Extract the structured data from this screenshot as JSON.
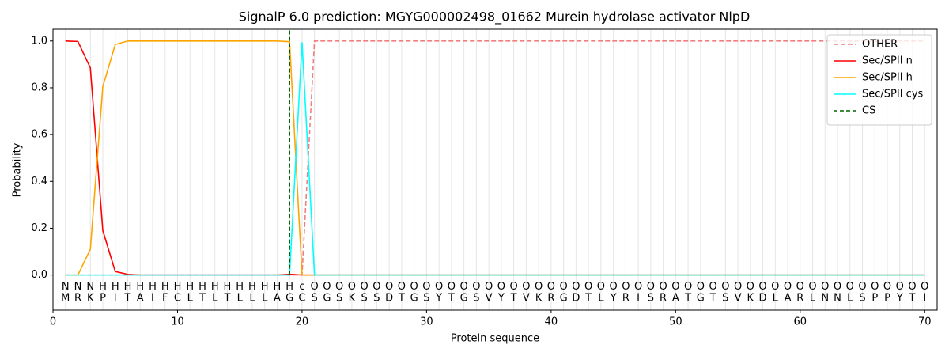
{
  "chart_data": {
    "type": "line",
    "title": "SignalP 6.0 prediction: MGYG000002498_01662 Murein hydrolase activator NlpD",
    "xlabel": "Protein sequence",
    "ylabel": "Probability",
    "xlim": [
      0,
      71
    ],
    "ylim": [
      -0.15,
      1.05
    ],
    "xticks": [
      0,
      10,
      20,
      30,
      40,
      50,
      60,
      70
    ],
    "yticks": [
      {
        "value": 0,
        "label": "0.0"
      },
      {
        "value": 0.2,
        "label": "0.2"
      },
      {
        "value": 0.4,
        "label": "0.4"
      },
      {
        "value": 0.6,
        "label": "0.6"
      },
      {
        "value": 0.8,
        "label": "0.8"
      },
      {
        "value": 1,
        "label": "1.0"
      }
    ],
    "grid": true,
    "legend": "upper right",
    "x": [
      1,
      2,
      3,
      4,
      5,
      6,
      7,
      8,
      9,
      10,
      11,
      12,
      13,
      14,
      15,
      16,
      17,
      18,
      19,
      20,
      21,
      22,
      23,
      24,
      25,
      26,
      27,
      28,
      29,
      30,
      31,
      32,
      33,
      34,
      35,
      36,
      37,
      38,
      39,
      40,
      41,
      42,
      43,
      44,
      45,
      46,
      47,
      48,
      49,
      50,
      51,
      52,
      53,
      54,
      55,
      56,
      57,
      58,
      59,
      60,
      61,
      62,
      63,
      64,
      65,
      66,
      67,
      68,
      69,
      70
    ],
    "sequence": [
      "M",
      "R",
      "K",
      "P",
      "I",
      "T",
      "A",
      "I",
      "F",
      "C",
      "L",
      "T",
      "L",
      "T",
      "L",
      "L",
      "L",
      "A",
      "G",
      "C",
      "S",
      "G",
      "S",
      "K",
      "S",
      "S",
      "D",
      "T",
      "G",
      "S",
      "Y",
      "T",
      "G",
      "S",
      "V",
      "Y",
      "T",
      "V",
      "K",
      "R",
      "G",
      "D",
      "T",
      "L",
      "Y",
      "R",
      "I",
      "S",
      "R",
      "A",
      "T",
      "G",
      "T",
      "S",
      "V",
      "K",
      "D",
      "L",
      "A",
      "R",
      "L",
      "N",
      "N",
      "L",
      "S",
      "P",
      "P",
      "Y",
      "T",
      "I"
    ],
    "region_labels": [
      "N",
      "N",
      "N",
      "H",
      "H",
      "H",
      "H",
      "H",
      "H",
      "H",
      "H",
      "H",
      "H",
      "H",
      "H",
      "H",
      "H",
      "H",
      "H",
      "c",
      "O",
      "O",
      "O",
      "O",
      "O",
      "O",
      "O",
      "O",
      "O",
      "O",
      "O",
      "O",
      "O",
      "O",
      "O",
      "O",
      "O",
      "O",
      "O",
      "O",
      "O",
      "O",
      "O",
      "O",
      "O",
      "O",
      "O",
      "O",
      "O",
      "O",
      "O",
      "O",
      "O",
      "O",
      "O",
      "O",
      "O",
      "O",
      "O",
      "O",
      "O",
      "O",
      "O",
      "O",
      "O",
      "O",
      "O",
      "O",
      "O",
      "O"
    ],
    "region_colors": {
      "N": "#ff0000",
      "H": "#ffa500",
      "c": "#00ffff",
      "O": "#808080"
    },
    "series": [
      {
        "name": "OTHER",
        "color": "#f08080",
        "dash": true,
        "values": [
          0,
          0,
          0,
          0,
          0,
          0,
          0,
          0,
          0,
          0,
          0,
          0,
          0,
          0,
          0,
          0,
          0,
          0,
          0,
          0,
          1,
          1,
          1,
          1,
          1,
          1,
          1,
          1,
          1,
          1,
          1,
          1,
          1,
          1,
          1,
          1,
          1,
          1,
          1,
          1,
          1,
          1,
          1,
          1,
          1,
          1,
          1,
          1,
          1,
          1,
          1,
          1,
          1,
          1,
          1,
          1,
          1,
          1,
          1,
          1,
          1,
          1,
          1,
          1,
          1,
          1,
          1,
          1,
          1,
          1
        ]
      },
      {
        "name": "Sec/SPII n",
        "color": "#ff0000",
        "dash": false,
        "values": [
          1.0,
          0.998,
          0.885,
          0.19,
          0.015,
          0.003,
          0,
          0,
          0,
          0,
          0,
          0,
          0,
          0,
          0,
          0,
          0,
          0,
          0.003,
          0,
          0,
          0,
          0,
          0,
          0,
          0,
          0,
          0,
          0,
          0,
          0,
          0,
          0,
          0,
          0,
          0,
          0,
          0,
          0,
          0,
          0,
          0,
          0,
          0,
          0,
          0,
          0,
          0,
          0,
          0,
          0,
          0,
          0,
          0,
          0,
          0,
          0,
          0,
          0,
          0,
          0,
          0,
          0,
          0,
          0,
          0,
          0,
          0,
          0,
          0
        ]
      },
      {
        "name": "Sec/SPII h",
        "color": "#ffa500",
        "dash": false,
        "values": [
          0,
          0,
          0.11,
          0.805,
          0.985,
          1.0,
          1.0,
          1.0,
          1.0,
          1.0,
          1.0,
          1.0,
          1.0,
          1.0,
          1.0,
          1.0,
          1.0,
          1.0,
          0.997,
          0,
          0,
          0,
          0,
          0,
          0,
          0,
          0,
          0,
          0,
          0,
          0,
          0,
          0,
          0,
          0,
          0,
          0,
          0,
          0,
          0,
          0,
          0,
          0,
          0,
          0,
          0,
          0,
          0,
          0,
          0,
          0,
          0,
          0,
          0,
          0,
          0,
          0,
          0,
          0,
          0,
          0,
          0,
          0,
          0,
          0,
          0,
          0,
          0,
          0,
          0
        ]
      },
      {
        "name": "Sec/SPII cys",
        "color": "#00ffff",
        "dash": false,
        "values": [
          0,
          0,
          0,
          0,
          0,
          0,
          0,
          0,
          0,
          0,
          0,
          0,
          0,
          0,
          0,
          0,
          0,
          0,
          0,
          0.995,
          0,
          0,
          0,
          0,
          0,
          0,
          0,
          0,
          0,
          0,
          0,
          0,
          0,
          0,
          0,
          0,
          0,
          0,
          0,
          0,
          0,
          0,
          0,
          0,
          0,
          0,
          0,
          0,
          0,
          0,
          0,
          0,
          0,
          0,
          0,
          0,
          0,
          0,
          0,
          0,
          0,
          0,
          0,
          0,
          0,
          0,
          0,
          0,
          0,
          0
        ]
      }
    ],
    "cs": {
      "name": "CS",
      "x": 19,
      "color": "#006400"
    }
  }
}
